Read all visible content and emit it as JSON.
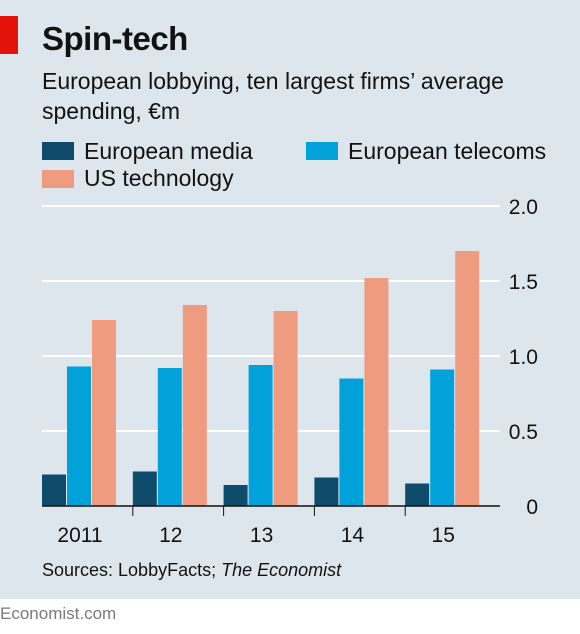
{
  "chart_data": {
    "type": "bar",
    "title": "Spin-tech",
    "subtitle": "European lobbying, ten largest firms’ average spending, €m",
    "categories": [
      "2011",
      "12",
      "13",
      "14",
      "15"
    ],
    "series": [
      {
        "name": "European media",
        "color": "#0f4c6b",
        "values": [
          0.21,
          0.23,
          0.14,
          0.19,
          0.15
        ]
      },
      {
        "name": "European telecoms",
        "color": "#00a2d9",
        "values": [
          0.93,
          0.92,
          0.94,
          0.85,
          0.91
        ]
      },
      {
        "name": "US technology",
        "color": "#ef9b80",
        "values": [
          1.24,
          1.34,
          1.3,
          1.52,
          1.7
        ]
      }
    ],
    "ylim": [
      0,
      2.0
    ],
    "yticks": [
      "0",
      "0.5",
      "1.0",
      "1.5",
      "2.0"
    ],
    "grid": true,
    "legend_position": "top-left"
  },
  "source_prefix": "Sources: LobbyFacts; ",
  "source_italic": "The Economist",
  "footer": "Economist.com"
}
